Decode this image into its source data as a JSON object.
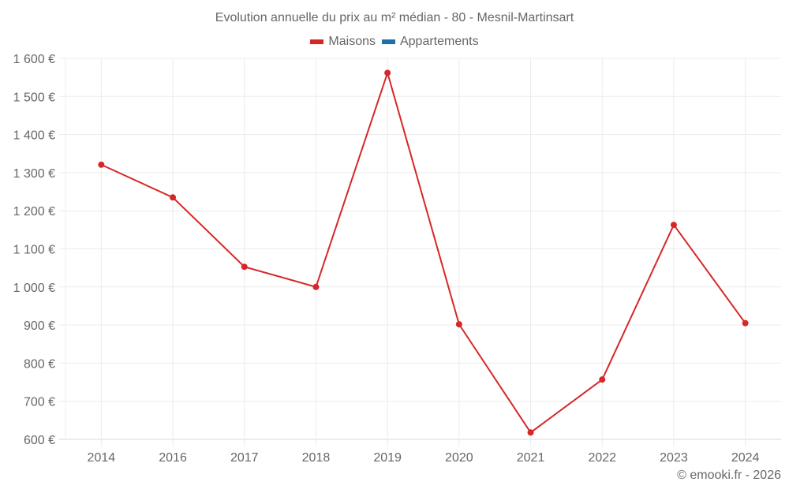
{
  "title": "Evolution annuelle du prix au m² médian - 80 - Mesnil-Martinsart",
  "legend": [
    {
      "label": "Maisons",
      "color": "#d62728"
    },
    {
      "label": "Appartements",
      "color": "#1f6fa8"
    }
  ],
  "footer": "© emooki.fr - 2026",
  "chart_data": {
    "type": "line",
    "title": "Evolution annuelle du prix au m² médian - 80 - Mesnil-Martinsart",
    "xlabel": "",
    "ylabel": "",
    "categories": [
      "2014",
      "2016",
      "2017",
      "2018",
      "2019",
      "2020",
      "2021",
      "2022",
      "2023",
      "2024"
    ],
    "series": [
      {
        "name": "Maisons",
        "color": "#d62728",
        "values": [
          1321,
          1235,
          1053,
          1000,
          1562,
          902,
          618,
          757,
          1163,
          905
        ]
      },
      {
        "name": "Appartements",
        "color": "#1f6fa8",
        "values": []
      }
    ],
    "ylim": [
      600,
      1600
    ],
    "yticks": [
      600,
      700,
      800,
      900,
      1000,
      1100,
      1200,
      1300,
      1400,
      1500,
      1600
    ],
    "ytick_labels": [
      "600 €",
      "700 €",
      "800 €",
      "900 €",
      "1 000 €",
      "1 100 €",
      "1 200 €",
      "1 300 €",
      "1 400 €",
      "1 500 €",
      "1 600 €"
    ],
    "grid": true,
    "legend_position": "top"
  }
}
